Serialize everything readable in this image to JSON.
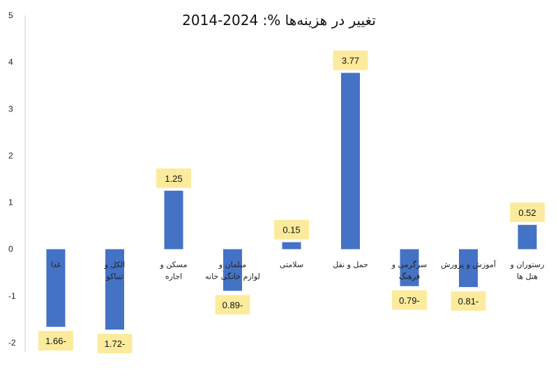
{
  "chart_data": {
    "type": "bar",
    "title": "تغییر در هزینه‌ها %: 2024-2014",
    "xlabel": "",
    "ylabel": "",
    "ylim": [
      -2,
      5
    ],
    "yticks": [
      "5",
      "4",
      "3",
      "2",
      "1",
      "0",
      "-1",
      "-2"
    ],
    "grid": false,
    "categories": [
      "غذا",
      "الکل و تنباکو",
      "مسکن و اجاره",
      "مبلمان و لوازم خانگی خانه",
      "سلامتی",
      "حمل و نقل",
      "سرگرمی و فرهنگ",
      "آموزش و پرورش",
      "رستوران و هتل ها"
    ],
    "values": [
      -1.66,
      -1.72,
      1.25,
      -0.89,
      0.15,
      3.77,
      -0.79,
      -0.81,
      0.52
    ],
    "data_labels": [
      "1.66-",
      "1.72-",
      "1.25",
      "0.89-",
      "0.15",
      "3.77",
      "0.79-",
      "0.81-",
      "0.52"
    ],
    "colors": {
      "bar": "#4472C4",
      "label_bg": "#FCEB9C",
      "axis": "#cccccc"
    }
  }
}
